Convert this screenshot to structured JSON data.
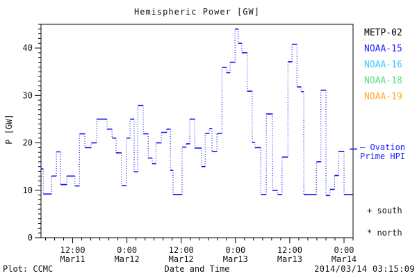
{
  "title": "Hemispheric Power [GW]",
  "axes": {
    "ylabel": "P [GW]",
    "xlabel": "Date and Time",
    "yticks": [
      0,
      10,
      20,
      30,
      40
    ],
    "ylim": [
      0,
      45
    ],
    "xlim_hours_since_mar11": [
      5,
      74
    ],
    "x_minor_step_hours": 2,
    "y_minor_step_gw": 1,
    "xticks": [
      {
        "time": "12:00",
        "date": "Mar11",
        "hour": 12
      },
      {
        "time": "0:00",
        "date": "Mar12",
        "hour": 24
      },
      {
        "time": "12:00",
        "date": "Mar12",
        "hour": 36
      },
      {
        "time": "0:00",
        "date": "Mar13",
        "hour": 48
      },
      {
        "time": "12:00",
        "date": "Mar13",
        "hour": 60
      },
      {
        "time": "0:00",
        "date": "Mar14",
        "hour": 72
      }
    ]
  },
  "legend": {
    "satellites": [
      {
        "label": "METP-02",
        "color": "#000000"
      },
      {
        "label": "NOAA-15",
        "color": "#2222ff"
      },
      {
        "label": "NOAA-16",
        "color": "#33ccff"
      },
      {
        "label": "NOAA-18",
        "color": "#5cdd8c"
      },
      {
        "label": "NOAA-19",
        "color": "#ffaa22"
      }
    ],
    "line_label_1": "— Ovation",
    "line_label_2": "Prime HPI",
    "line_color": "#2222ff",
    "south_label": "+ south",
    "north_label": "* north"
  },
  "footer": {
    "credit": "Plot: CCMC",
    "timestamp": "2014/03/14 03:15:09"
  },
  "chart_data": {
    "type": "line",
    "style": "step-histogram",
    "title": "Hemispheric Power [GW]",
    "xlabel": "Date and Time",
    "ylabel": "P [GW]",
    "xlim": [
      5,
      74
    ],
    "ylim": [
      0,
      45
    ],
    "x_unit": "hours since 2014-03-11 00:00 UT",
    "grid": false,
    "legend_position": "right",
    "series": [
      {
        "name": "Ovation Prime HPI",
        "color": "#1414f0",
        "x_end_hour": 74,
        "steps_hour_gw": [
          [
            5.0,
            14.5
          ],
          [
            5.5,
            9.2
          ],
          [
            7.3,
            13.0
          ],
          [
            8.4,
            18.1
          ],
          [
            9.3,
            11.2
          ],
          [
            10.7,
            13.0
          ],
          [
            12.5,
            10.9
          ],
          [
            13.5,
            21.9
          ],
          [
            14.7,
            19.0
          ],
          [
            16.1,
            20.0
          ],
          [
            17.3,
            25.0
          ],
          [
            19.6,
            22.9
          ],
          [
            20.7,
            21.0
          ],
          [
            21.6,
            17.9
          ],
          [
            22.8,
            11.0
          ],
          [
            23.9,
            21.0
          ],
          [
            24.7,
            25.0
          ],
          [
            25.6,
            13.9
          ],
          [
            26.4,
            27.9
          ],
          [
            27.6,
            21.9
          ],
          [
            28.7,
            16.8
          ],
          [
            29.6,
            15.6
          ],
          [
            30.4,
            20.0
          ],
          [
            31.6,
            22.2
          ],
          [
            32.8,
            22.9
          ],
          [
            33.6,
            14.2
          ],
          [
            34.2,
            9.1
          ],
          [
            36.2,
            19.1
          ],
          [
            37.1,
            19.8
          ],
          [
            37.9,
            25.0
          ],
          [
            39.0,
            18.9
          ],
          [
            40.5,
            15.0
          ],
          [
            41.3,
            22.0
          ],
          [
            42.2,
            23.0
          ],
          [
            42.8,
            18.2
          ],
          [
            43.9,
            22.0
          ],
          [
            45.0,
            35.9
          ],
          [
            46.0,
            34.8
          ],
          [
            46.8,
            37.0
          ],
          [
            47.9,
            44.0
          ],
          [
            48.6,
            41.0
          ],
          [
            49.4,
            39.0
          ],
          [
            50.6,
            30.9
          ],
          [
            51.7,
            20.1
          ],
          [
            52.3,
            19.0
          ],
          [
            53.6,
            9.1
          ],
          [
            54.8,
            26.1
          ],
          [
            56.2,
            10.0
          ],
          [
            57.3,
            9.1
          ],
          [
            58.3,
            17.0
          ],
          [
            59.6,
            37.1
          ],
          [
            60.5,
            40.8
          ],
          [
            61.6,
            31.8
          ],
          [
            62.5,
            30.8
          ],
          [
            63.1,
            9.1
          ],
          [
            65.9,
            16.0
          ],
          [
            66.9,
            31.1
          ],
          [
            68.0,
            8.9
          ],
          [
            68.9,
            10.2
          ],
          [
            69.9,
            13.1
          ],
          [
            70.8,
            18.2
          ],
          [
            72.0,
            9.1
          ]
        ]
      }
    ]
  }
}
